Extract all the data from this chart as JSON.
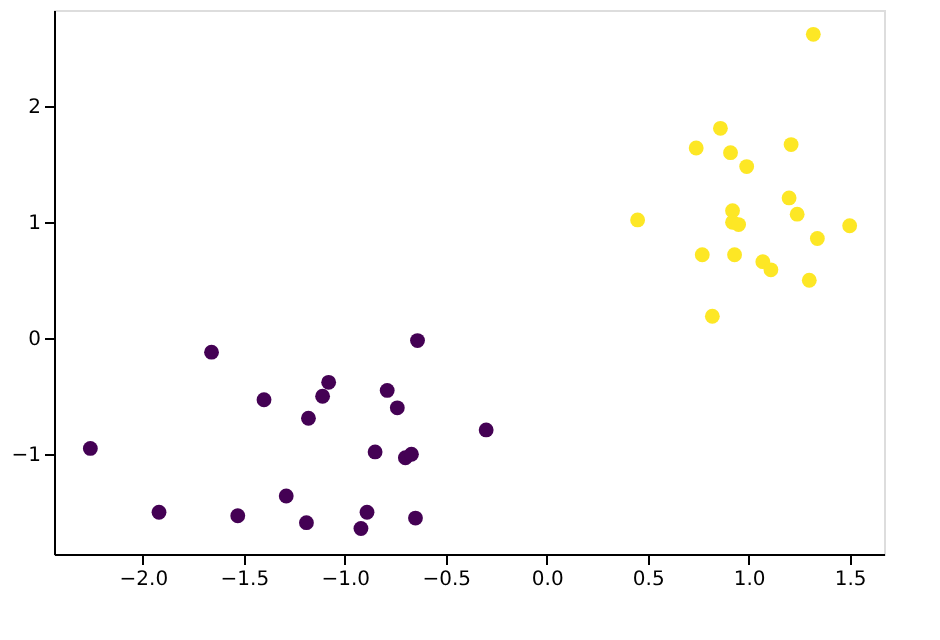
{
  "chart_data": {
    "type": "scatter",
    "marker": "circle",
    "grid": false,
    "legend": false,
    "xlim": [
      -2.44,
      1.67
    ],
    "ylim": [
      -1.86,
      2.83
    ],
    "xticks": [
      {
        "value": -2.0,
        "label": "−2.0"
      },
      {
        "value": -1.5,
        "label": "−1.5"
      },
      {
        "value": -1.0,
        "label": "−1.0"
      },
      {
        "value": -0.5,
        "label": "−0.5"
      },
      {
        "value": 0.0,
        "label": "0.0"
      },
      {
        "value": 0.5,
        "label": "0.5"
      },
      {
        "value": 1.0,
        "label": "1.0"
      },
      {
        "value": 1.5,
        "label": "1.5"
      }
    ],
    "yticks": [
      {
        "value": -1,
        "label": "−1"
      },
      0,
      1,
      2
    ],
    "series": [
      {
        "color": "#440154",
        "x": [
          -2.26,
          -1.92,
          -1.66,
          -1.53,
          -1.4,
          -1.29,
          -1.18,
          -1.19,
          -1.11,
          -1.08,
          -0.92,
          -0.89,
          -0.85,
          -0.79,
          -0.74,
          -0.7,
          -0.67,
          -0.65,
          -0.64,
          -0.3
        ],
        "values": [
          -0.95,
          -1.5,
          -0.12,
          -1.53,
          -0.53,
          -1.36,
          -0.69,
          -1.59,
          -0.5,
          -0.38,
          -1.64,
          -1.5,
          -0.98,
          -0.45,
          -0.6,
          -1.03,
          -1.0,
          -1.55,
          -0.02,
          -0.79
        ]
      },
      {
        "color": "#fde725",
        "x": [
          1.32,
          0.86,
          0.74,
          0.91,
          0.99,
          1.21,
          1.2,
          1.24,
          0.92,
          0.92,
          0.95,
          0.45,
          1.5,
          1.34,
          0.77,
          0.93,
          1.07,
          1.11,
          1.3,
          0.82
        ],
        "values": [
          2.62,
          1.81,
          1.64,
          1.6,
          1.48,
          1.67,
          1.21,
          1.07,
          1.1,
          1.0,
          0.98,
          1.02,
          0.97,
          0.86,
          0.72,
          0.72,
          0.66,
          0.59,
          0.5,
          0.19
        ]
      }
    ]
  }
}
